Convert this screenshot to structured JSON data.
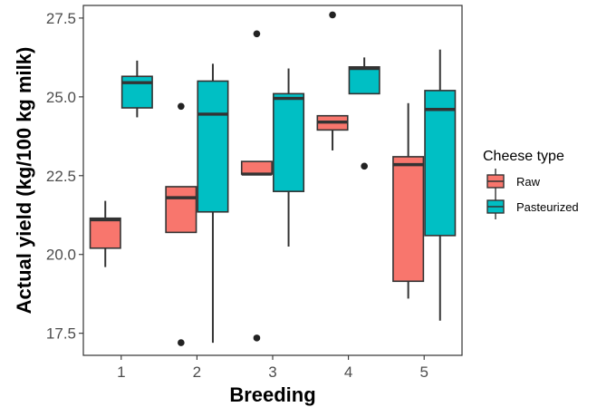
{
  "chart_data": {
    "type": "boxplot",
    "xlabel": "Breeding",
    "ylabel": "Actual yield (kg/100 kg milk)",
    "categories": [
      "1",
      "2",
      "3",
      "4",
      "5"
    ],
    "ylim": [
      16.8,
      27.9
    ],
    "yticks": [
      17.5,
      20.0,
      22.5,
      25.0,
      27.5
    ],
    "ytick_labels": [
      "17.5",
      "20.0",
      "22.5",
      "25.0",
      "27.5"
    ],
    "grid": false,
    "legend": {
      "title": "Cheese type",
      "position": "right",
      "entries": [
        {
          "label": "Raw",
          "color": "#F8766D"
        },
        {
          "label": "Pasteurized",
          "color": "#00BFC4"
        }
      ]
    },
    "series": [
      {
        "name": "Raw",
        "color": "#F8766D",
        "boxes": [
          {
            "category": "1",
            "whisker_low": 19.6,
            "q1": 20.2,
            "median": 21.1,
            "q3": 21.15,
            "whisker_high": 21.7,
            "outliers": []
          },
          {
            "category": "2",
            "whisker_low": 20.7,
            "q1": 20.7,
            "median": 21.8,
            "q3": 22.15,
            "whisker_high": 22.15,
            "outliers": [
              24.7,
              17.2
            ]
          },
          {
            "category": "3",
            "whisker_low": 22.55,
            "q1": 22.55,
            "median": 22.55,
            "q3": 22.95,
            "whisker_high": 22.95,
            "outliers": [
              27.0,
              17.35
            ]
          },
          {
            "category": "4",
            "whisker_low": 23.3,
            "q1": 23.95,
            "median": 24.2,
            "q3": 24.4,
            "whisker_high": 24.4,
            "outliers": [
              27.6
            ]
          },
          {
            "category": "5",
            "whisker_low": 18.6,
            "q1": 19.15,
            "median": 22.85,
            "q3": 23.1,
            "whisker_high": 24.8,
            "outliers": []
          }
        ]
      },
      {
        "name": "Pasteurized",
        "color": "#00BFC4",
        "boxes": [
          {
            "category": "1",
            "whisker_low": 24.35,
            "q1": 24.65,
            "median": 25.45,
            "q3": 25.65,
            "whisker_high": 26.15,
            "outliers": []
          },
          {
            "category": "2",
            "whisker_low": 17.2,
            "q1": 21.35,
            "median": 24.45,
            "q3": 25.5,
            "whisker_high": 26.05,
            "outliers": []
          },
          {
            "category": "3",
            "whisker_low": 20.25,
            "q1": 22.0,
            "median": 24.95,
            "q3": 25.1,
            "whisker_high": 25.9,
            "outliers": []
          },
          {
            "category": "4",
            "whisker_low": 25.1,
            "q1": 25.1,
            "median": 25.9,
            "q3": 25.95,
            "whisker_high": 26.25,
            "outliers": [
              22.8
            ]
          },
          {
            "category": "5",
            "whisker_low": 17.9,
            "q1": 20.6,
            "median": 24.6,
            "q3": 25.2,
            "whisker_high": 26.5,
            "outliers": []
          }
        ]
      }
    ]
  }
}
